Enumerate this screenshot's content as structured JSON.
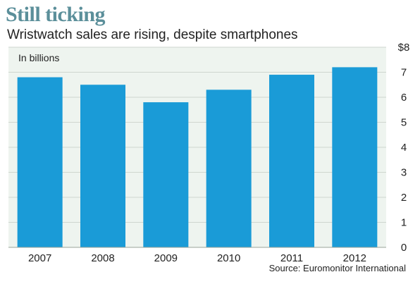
{
  "chart_data": {
    "type": "bar",
    "title": "Still ticking",
    "subtitle": "Wristwatch sales are rising, despite smartphones",
    "unit_note": "In billions",
    "source": "Source: Euromonitor International",
    "categories": [
      "2007",
      "2008",
      "2009",
      "2010",
      "2011",
      "2012"
    ],
    "values": [
      6.8,
      6.5,
      5.8,
      6.3,
      6.9,
      7.2
    ],
    "ylim": [
      0,
      8
    ],
    "yticks": [
      "0",
      "1",
      "2",
      "3",
      "4",
      "5",
      "6",
      "7",
      "$8"
    ],
    "grid": true,
    "bar_color": "#1a9bd7",
    "plot_background": "#eef4ef"
  }
}
